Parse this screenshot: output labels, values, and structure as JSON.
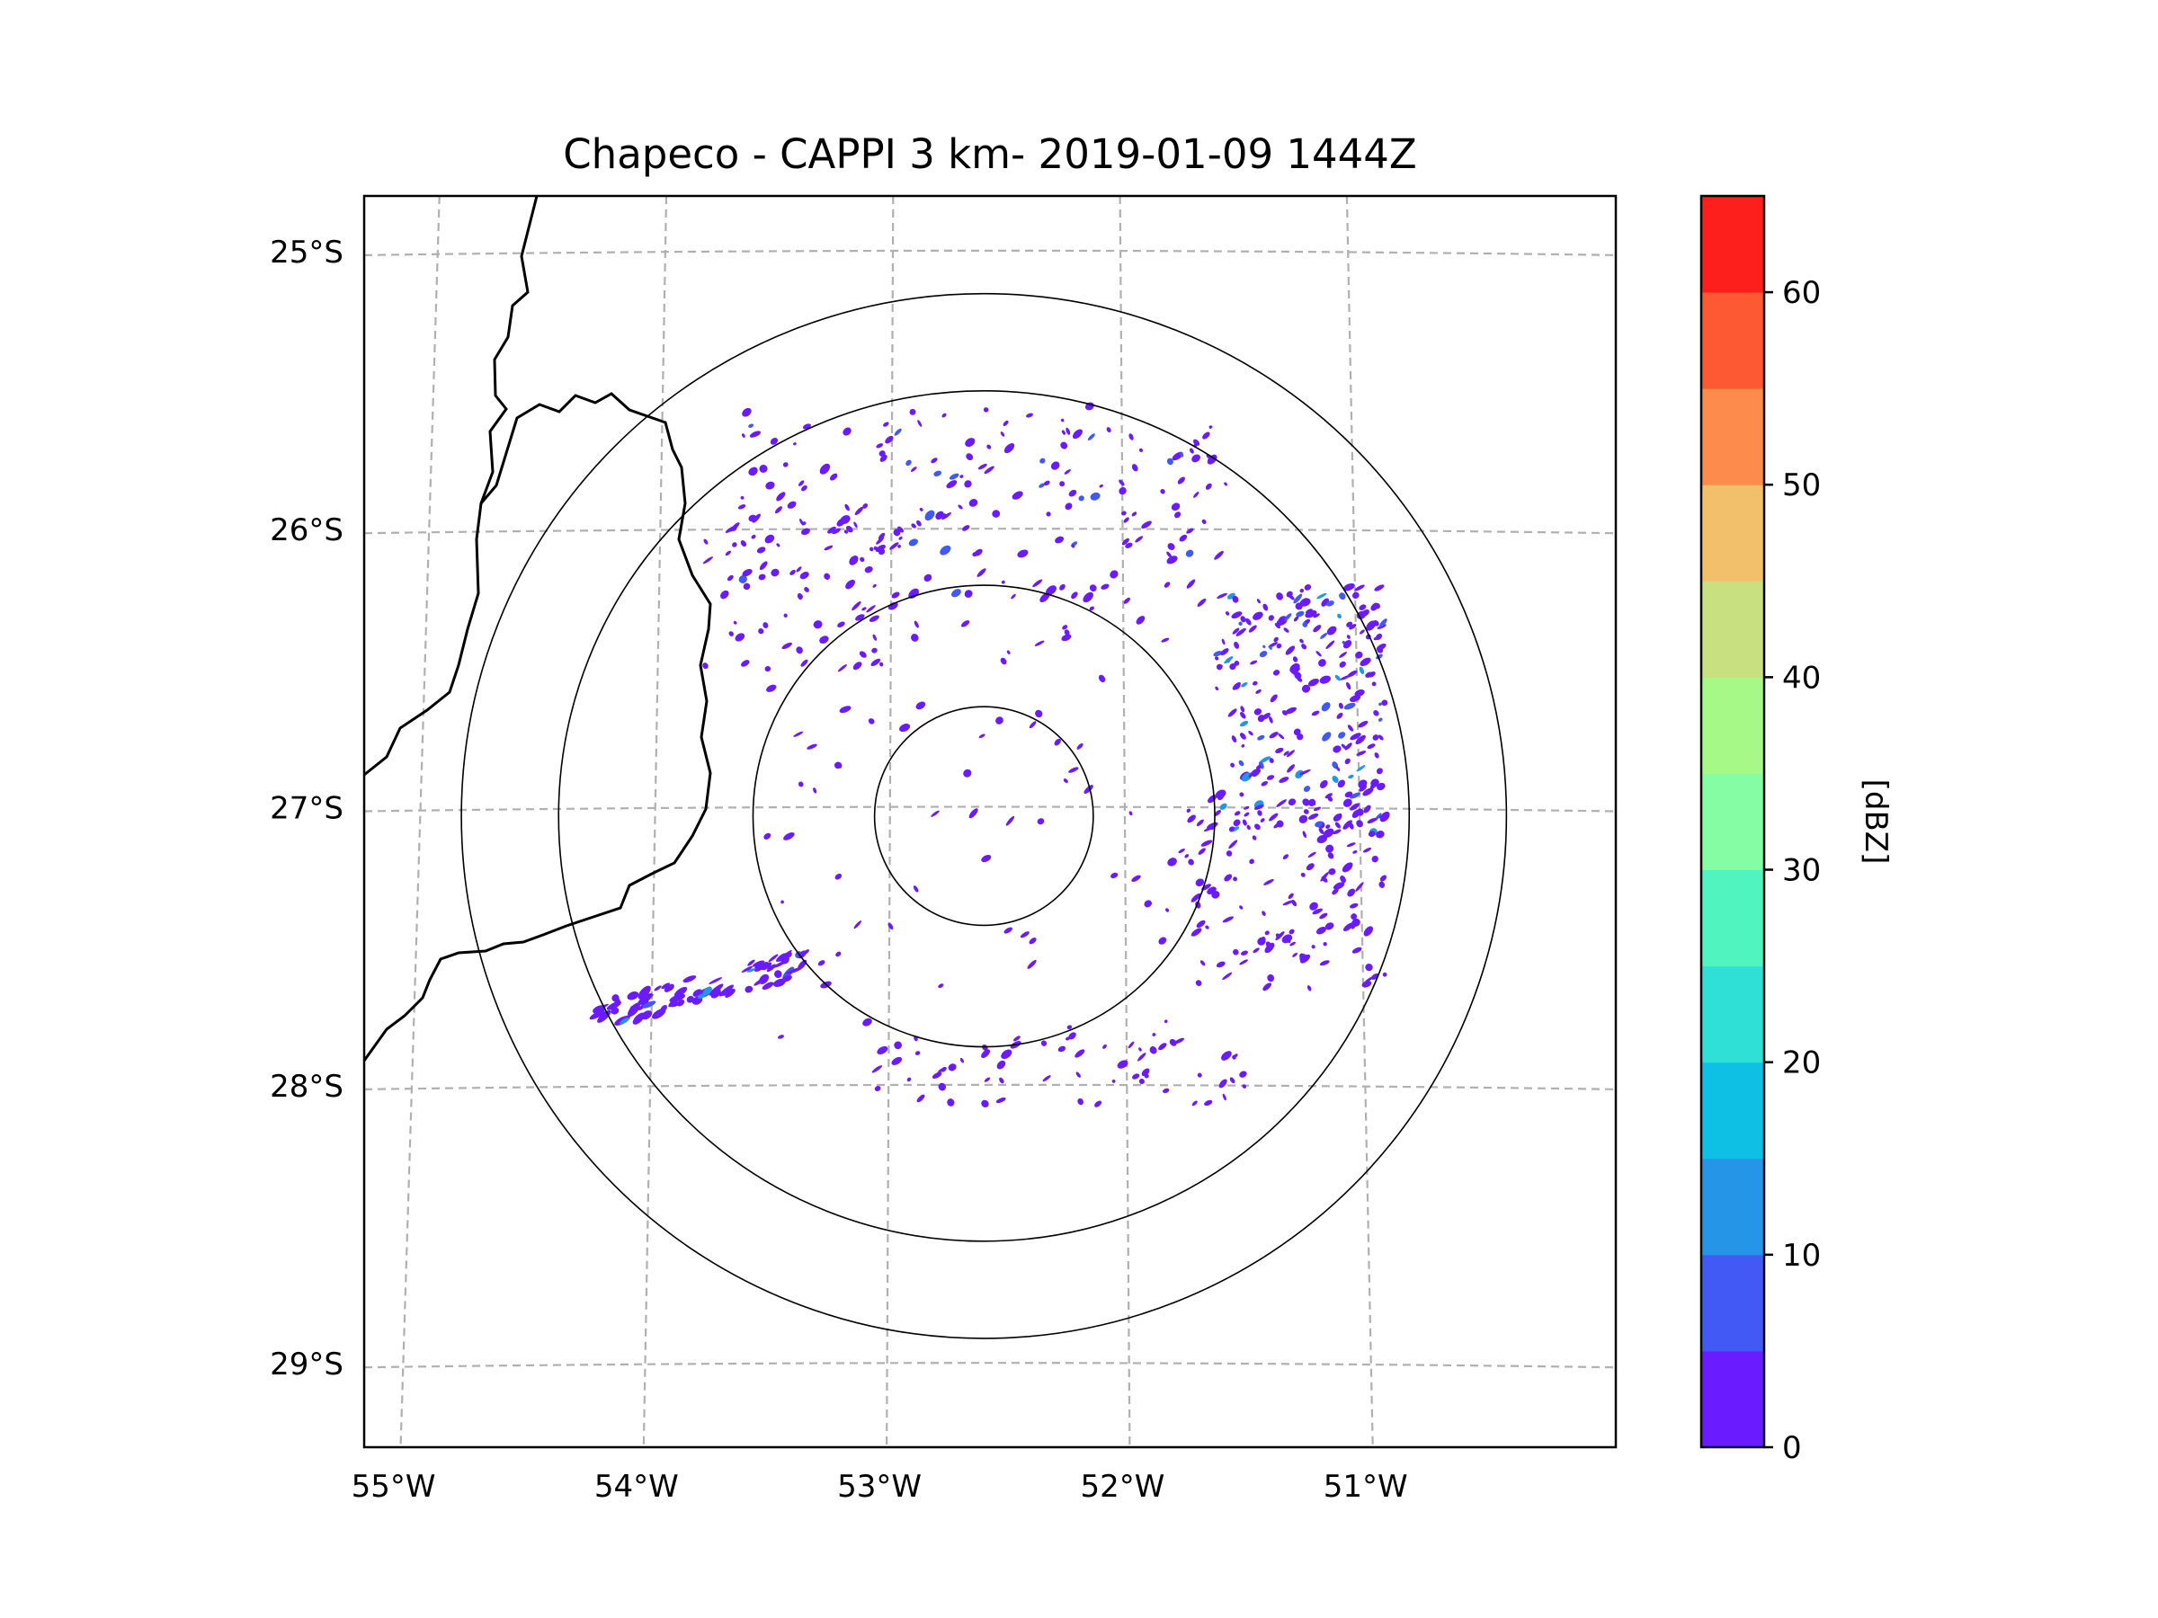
{
  "chart_data": {
    "type": "heatmap",
    "title": "Chapeco - CAPPI 3 km- 2019-01-09 1444Z",
    "map": {
      "lon_range": [
        -55.15,
        -50.0
      ],
      "lat_range": [
        -29.3,
        -24.8
      ],
      "lon_ticks": [
        {
          "value": -55,
          "label": "55°W"
        },
        {
          "value": -54,
          "label": "54°W"
        },
        {
          "value": -53,
          "label": "53°W"
        },
        {
          "value": -52,
          "label": "52°W"
        },
        {
          "value": -51,
          "label": "51°W"
        }
      ],
      "lat_ticks": [
        {
          "value": -25,
          "label": "25°S"
        },
        {
          "value": -26,
          "label": "26°S"
        },
        {
          "value": -27,
          "label": "27°S"
        },
        {
          "value": -28,
          "label": "28°S"
        },
        {
          "value": -29,
          "label": "29°S"
        }
      ],
      "gridlines": true,
      "radar_center": {
        "lon": -52.6,
        "lat": -27.03
      },
      "range_rings_deg": [
        0.45,
        0.95,
        1.75,
        2.15
      ],
      "echo_clusters": [
        {
          "name": "north band",
          "lon": -52.6,
          "lat": -25.9,
          "dlon": 1.0,
          "dlat": 0.35,
          "count": 170,
          "max_dbz": 10
        },
        {
          "name": "northwest scatter",
          "lon": -53.3,
          "lat": -26.2,
          "dlon": 0.45,
          "dlat": 0.3,
          "count": 60,
          "max_dbz": 5
        },
        {
          "name": "east band",
          "lon": -51.3,
          "lat": -26.65,
          "dlon": 0.35,
          "dlat": 0.45,
          "count": 240,
          "max_dbz": 15
        },
        {
          "name": "east scatter",
          "lon": -51.35,
          "lat": -27.3,
          "dlon": 0.4,
          "dlat": 0.35,
          "count": 120,
          "max_dbz": 5
        },
        {
          "name": "southwest line",
          "lon": -53.75,
          "lat": -27.65,
          "dlon": 0.45,
          "dlat": 0.12,
          "count": 70,
          "max_dbz": 15
        },
        {
          "name": "south arc",
          "lon": -52.3,
          "lat": -27.95,
          "dlon": 0.8,
          "dlat": 0.12,
          "count": 60,
          "max_dbz": 5
        },
        {
          "name": "inner ring",
          "lon": -52.6,
          "lat": -27.03,
          "dlon": 0.9,
          "dlat": 0.8,
          "count": 80,
          "max_dbz": 5
        }
      ]
    },
    "colorbar": {
      "label": "[dBZ]",
      "range": [
        0,
        65
      ],
      "tick_values": [
        0,
        10,
        20,
        30,
        40,
        50,
        60
      ],
      "tick_labels": [
        "0",
        "10",
        "20",
        "30",
        "40",
        "50",
        "60"
      ],
      "colors": [
        "#6a1bff",
        "#4259f5",
        "#2595e8",
        "#0ec0e4",
        "#2fe0d6",
        "#50f4be",
        "#84fda4",
        "#a6f887",
        "#c9e080",
        "#f2c06b",
        "#fd8b4c",
        "#fd5a33",
        "#fd1f1c"
      ]
    }
  }
}
